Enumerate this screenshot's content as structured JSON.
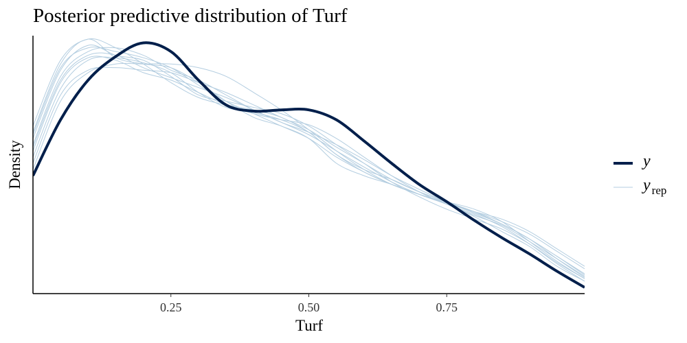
{
  "chart_data": {
    "type": "line",
    "title": "Posterior predictive distribution of Turf",
    "xlabel": "Turf",
    "ylabel": "Density",
    "xlim": [
      0.0,
      1.0
    ],
    "ylim": [
      0.0,
      2.1
    ],
    "x_ticks": [
      0.25,
      0.5,
      0.75
    ],
    "x_tick_labels": [
      "0.25",
      "0.50",
      "0.75"
    ],
    "y_ticks_shown": false,
    "grid": false,
    "legend_position": "right",
    "colors": {
      "y": "#011f4b",
      "yrep": "#b3cde0"
    },
    "x": [
      0.0,
      0.05,
      0.1,
      0.15,
      0.2,
      0.25,
      0.3,
      0.35,
      0.4,
      0.45,
      0.5,
      0.55,
      0.6,
      0.65,
      0.7,
      0.75,
      0.8,
      0.85,
      0.9,
      0.95,
      1.0
    ],
    "series": [
      {
        "name": "y",
        "role": "observed",
        "values": [
          0.95,
          1.4,
          1.72,
          1.91,
          2.02,
          1.95,
          1.72,
          1.52,
          1.47,
          1.48,
          1.48,
          1.4,
          1.23,
          1.05,
          0.88,
          0.74,
          0.59,
          0.45,
          0.32,
          0.18,
          0.05
        ]
      },
      {
        "role": "replicate",
        "values": [
          1.3,
          1.85,
          2.05,
          1.9,
          1.85,
          1.82,
          1.7,
          1.55,
          1.42,
          1.35,
          1.25,
          1.05,
          0.95,
          0.88,
          0.8,
          0.72,
          0.62,
          0.5,
          0.38,
          0.22,
          0.1
        ]
      },
      {
        "role": "replicate",
        "values": [
          1.2,
          1.75,
          1.95,
          1.98,
          1.92,
          1.8,
          1.72,
          1.6,
          1.48,
          1.38,
          1.28,
          1.15,
          1.02,
          0.9,
          0.8,
          0.72,
          0.63,
          0.55,
          0.42,
          0.28,
          0.14
        ]
      },
      {
        "role": "replicate",
        "values": [
          1.1,
          1.65,
          1.88,
          1.9,
          1.86,
          1.78,
          1.62,
          1.5,
          1.46,
          1.4,
          1.3,
          1.12,
          1.0,
          0.92,
          0.82,
          0.74,
          0.65,
          0.56,
          0.44,
          0.3,
          0.16
        ]
      },
      {
        "role": "replicate",
        "values": [
          1.25,
          1.8,
          2.0,
          1.92,
          1.88,
          1.75,
          1.6,
          1.55,
          1.5,
          1.45,
          1.35,
          1.2,
          1.05,
          0.9,
          0.78,
          0.68,
          0.6,
          0.52,
          0.4,
          0.25,
          0.12
        ]
      },
      {
        "role": "replicate",
        "values": [
          1.05,
          1.6,
          1.8,
          1.82,
          1.8,
          1.78,
          1.7,
          1.62,
          1.52,
          1.42,
          1.32,
          1.18,
          1.05,
          0.92,
          0.82,
          0.74,
          0.66,
          0.58,
          0.48,
          0.34,
          0.2
        ]
      },
      {
        "role": "replicate",
        "values": [
          1.15,
          1.7,
          1.9,
          1.88,
          1.78,
          1.72,
          1.62,
          1.52,
          1.45,
          1.4,
          1.36,
          1.25,
          1.1,
          0.95,
          0.82,
          0.72,
          0.64,
          0.54,
          0.4,
          0.24,
          0.1
        ]
      },
      {
        "role": "replicate",
        "values": [
          1.35,
          1.88,
          2.05,
          1.98,
          1.85,
          1.7,
          1.58,
          1.52,
          1.48,
          1.42,
          1.3,
          1.12,
          0.98,
          0.88,
          0.8,
          0.73,
          0.65,
          0.56,
          0.44,
          0.28,
          0.13
        ]
      },
      {
        "role": "replicate",
        "values": [
          1.0,
          1.55,
          1.78,
          1.85,
          1.85,
          1.85,
          1.82,
          1.75,
          1.62,
          1.48,
          1.32,
          1.15,
          1.0,
          0.88,
          0.8,
          0.73,
          0.66,
          0.6,
          0.5,
          0.36,
          0.22
        ]
      },
      {
        "role": "replicate",
        "values": [
          1.28,
          1.82,
          1.98,
          1.95,
          1.9,
          1.82,
          1.68,
          1.55,
          1.45,
          1.35,
          1.25,
          1.1,
          0.98,
          0.88,
          0.8,
          0.74,
          0.68,
          0.58,
          0.42,
          0.26,
          0.12
        ]
      },
      {
        "role": "replicate",
        "values": [
          1.18,
          1.72,
          1.92,
          1.92,
          1.82,
          1.74,
          1.66,
          1.58,
          1.48,
          1.38,
          1.3,
          1.2,
          1.08,
          0.95,
          0.84,
          0.74,
          0.66,
          0.56,
          0.44,
          0.3,
          0.15
        ]
      }
    ],
    "legend": [
      {
        "label": "y",
        "sub": "",
        "key": "y"
      },
      {
        "label": "y",
        "sub": "rep",
        "key": "yrep"
      }
    ]
  }
}
